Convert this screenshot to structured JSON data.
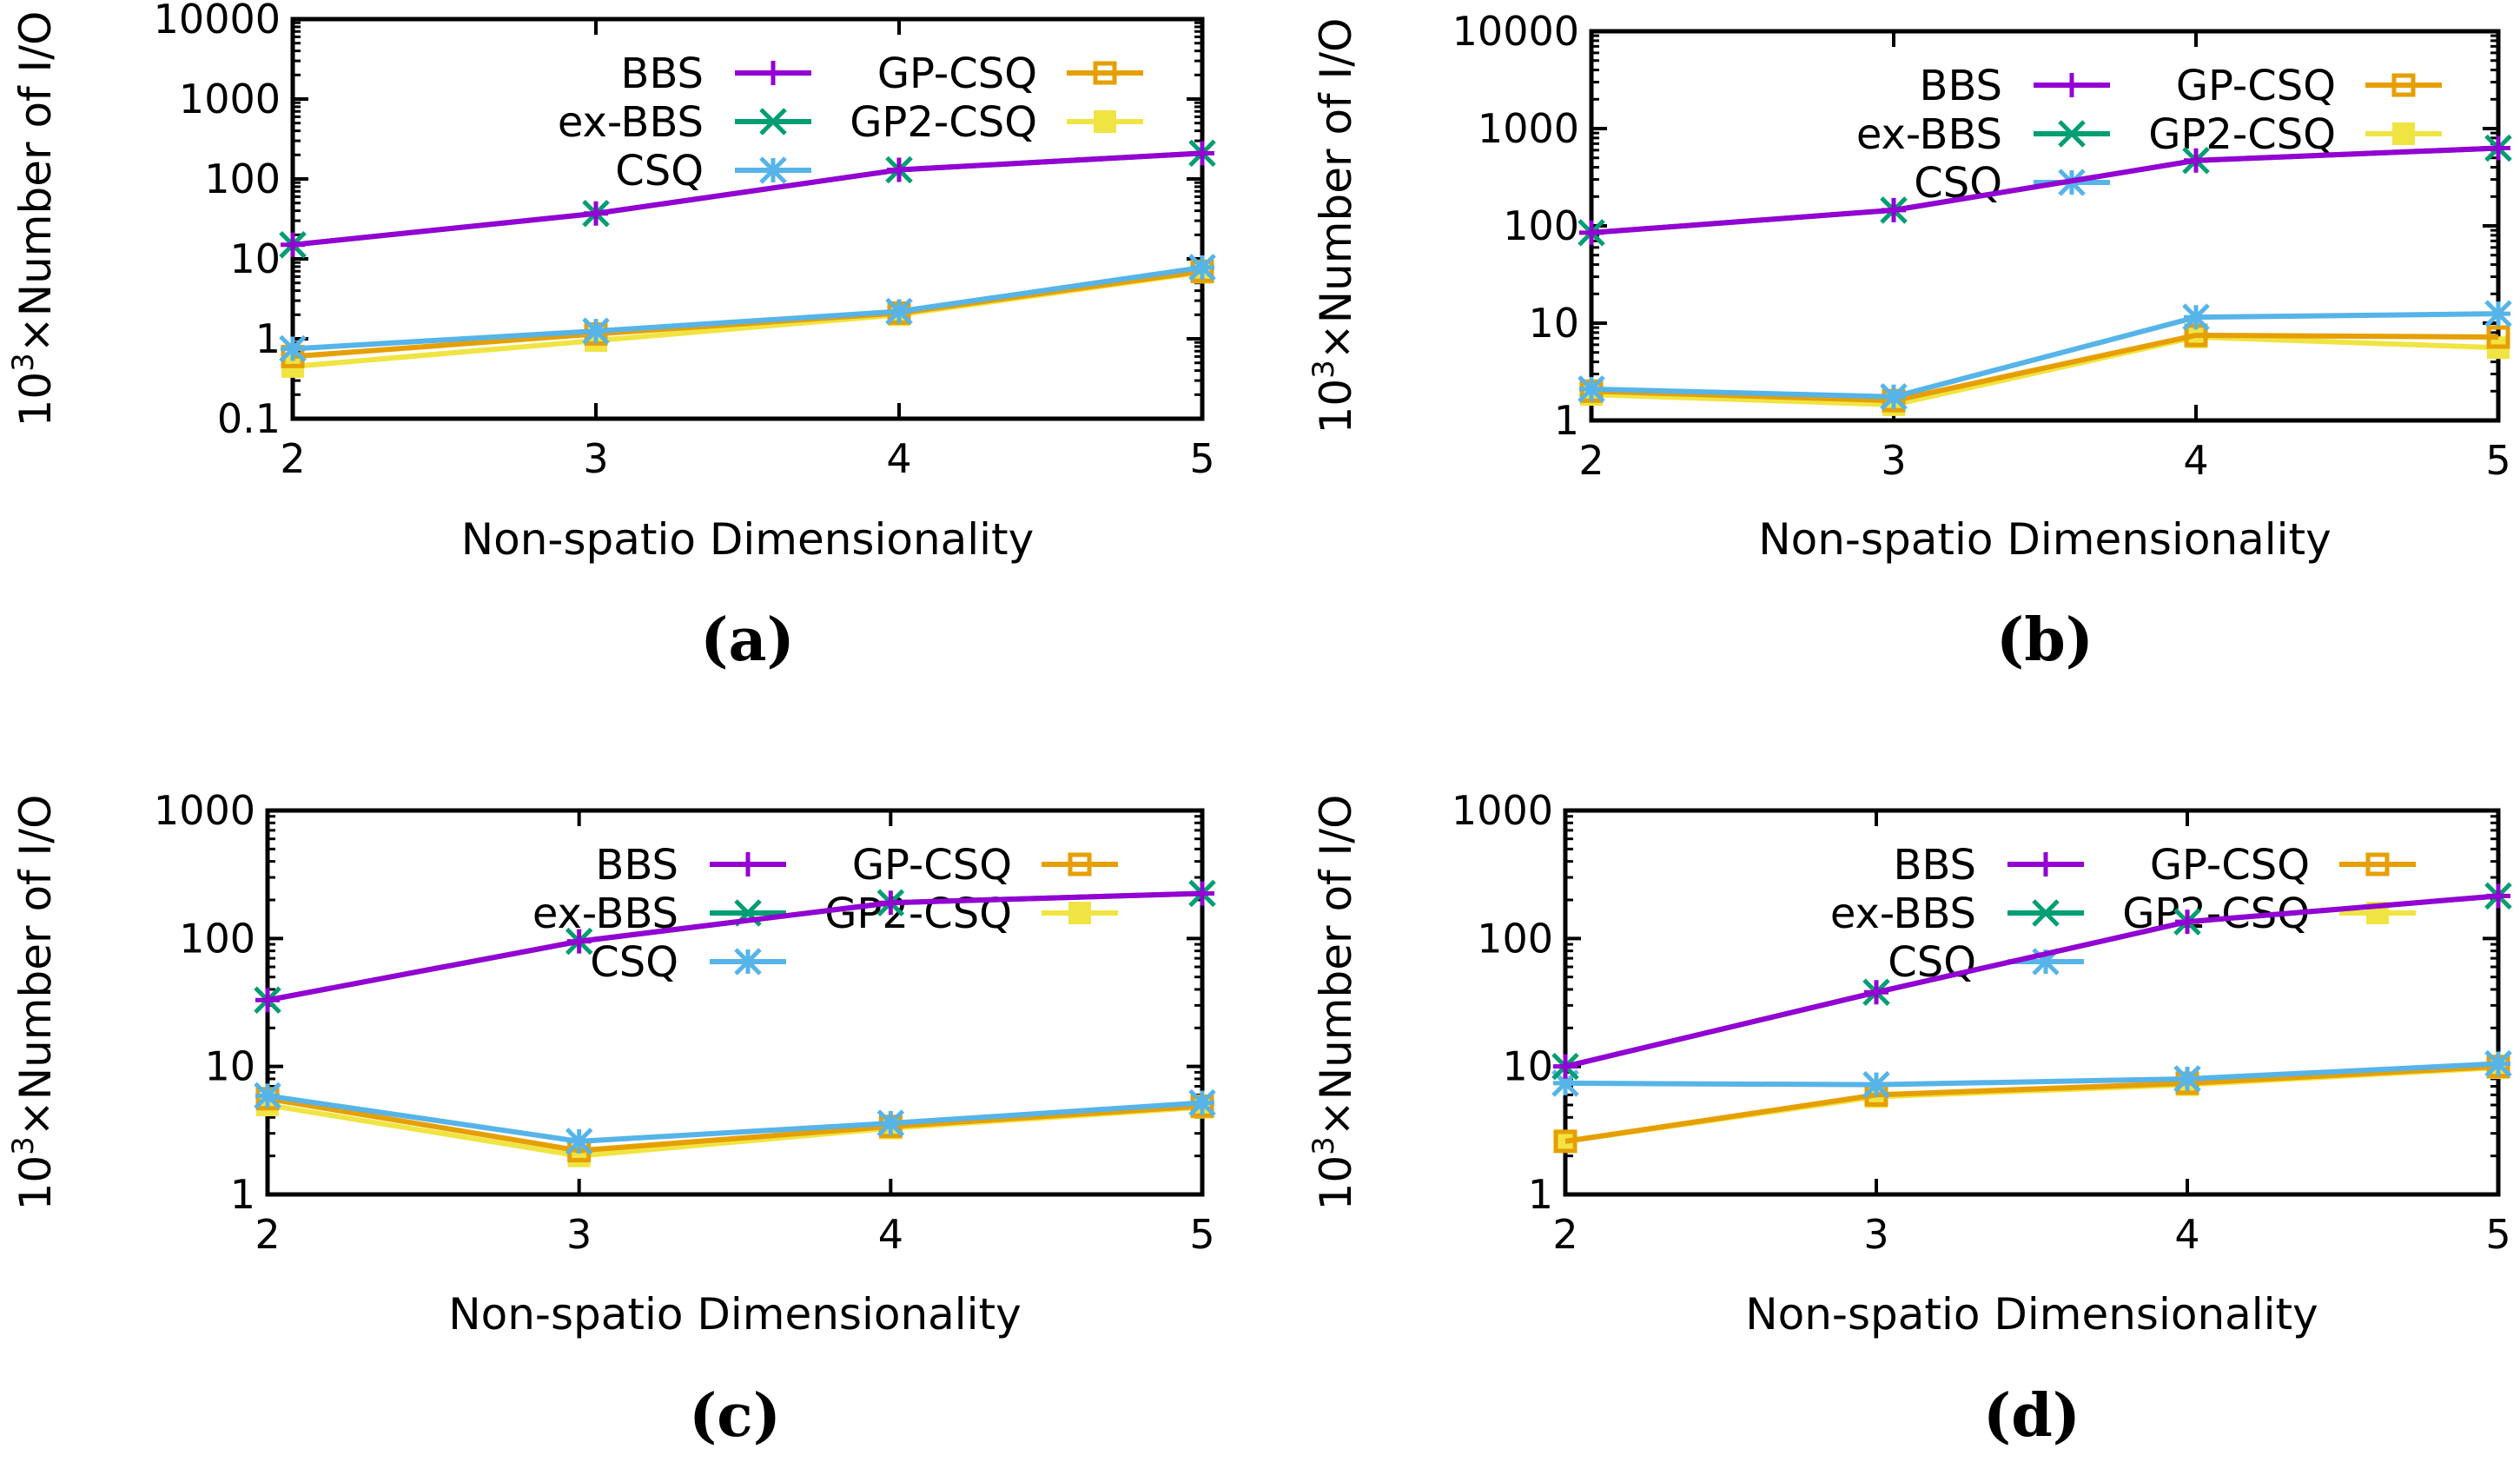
{
  "chart_data": [
    {
      "type": "line",
      "caption": "(a)",
      "xlabel": "Non-spatio Dimensionality",
      "ylabel_base": "10",
      "ylabel_exp": "3",
      "ylabel_rest": "×Number of I/O",
      "yscale": "log",
      "ylim": [
        0.1,
        10000
      ],
      "yticks": [
        "0.1",
        "1",
        "10",
        "100",
        "1000",
        "10000"
      ],
      "x": [
        2,
        3,
        4,
        5
      ],
      "xticks": [
        "2",
        "3",
        "4",
        "5"
      ],
      "legend_position": "top-left",
      "series": [
        {
          "name": "BBS",
          "color": "#9400d3",
          "marker": "plus",
          "values": [
            15,
            37,
            130,
            210
          ]
        },
        {
          "name": "ex-BBS",
          "color": "#009e73",
          "marker": "x",
          "values": [
            15,
            37,
            130,
            210
          ]
        },
        {
          "name": "CSQ",
          "color": "#56b4e9",
          "marker": "star",
          "values": [
            0.75,
            1.25,
            2.2,
            7.8
          ]
        },
        {
          "name": "GP-CSQ",
          "color": "#e69f00",
          "marker": "square",
          "values": [
            0.6,
            1.15,
            2.1,
            7.0
          ]
        },
        {
          "name": "GP2-CSQ",
          "color": "#f0e442",
          "marker": "filled-square",
          "values": [
            0.45,
            0.95,
            2.0,
            6.8
          ]
        }
      ]
    },
    {
      "type": "line",
      "caption": "(b)",
      "xlabel": "Non-spatio Dimensionality",
      "ylabel_base": "10",
      "ylabel_exp": "3",
      "ylabel_rest": "×Number of I/O",
      "yscale": "log",
      "ylim": [
        1,
        10000
      ],
      "yticks": [
        "1",
        "10",
        "100",
        "1000",
        "10000"
      ],
      "x": [
        2,
        3,
        4,
        5
      ],
      "xticks": [
        "2",
        "3",
        "4",
        "5"
      ],
      "legend_position": "top-left",
      "series": [
        {
          "name": "BBS",
          "color": "#9400d3",
          "marker": "plus",
          "values": [
            85,
            145,
            470,
            630
          ]
        },
        {
          "name": "ex-BBS",
          "color": "#009e73",
          "marker": "x",
          "values": [
            85,
            145,
            470,
            630
          ]
        },
        {
          "name": "CSQ",
          "color": "#56b4e9",
          "marker": "star",
          "values": [
            2.1,
            1.75,
            11.5,
            12.5
          ]
        },
        {
          "name": "GP-CSQ",
          "color": "#e69f00",
          "marker": "square",
          "values": [
            2.0,
            1.6,
            7.5,
            7.2
          ]
        },
        {
          "name": "GP2-CSQ",
          "color": "#f0e442",
          "marker": "filled-square",
          "values": [
            1.85,
            1.45,
            7.2,
            5.6
          ]
        }
      ]
    },
    {
      "type": "line",
      "caption": "(c)",
      "xlabel": "Non-spatio Dimensionality",
      "ylabel_base": "10",
      "ylabel_exp": "3",
      "ylabel_rest": "×Number of I/O",
      "yscale": "log",
      "ylim": [
        1,
        1000
      ],
      "yticks": [
        "1",
        "10",
        "100",
        "1000"
      ],
      "x": [
        2,
        3,
        4,
        5
      ],
      "xticks": [
        "2",
        "3",
        "4",
        "5"
      ],
      "legend_position": "top-left",
      "series": [
        {
          "name": "BBS",
          "color": "#9400d3",
          "marker": "plus",
          "values": [
            33,
            95,
            190,
            225
          ]
        },
        {
          "name": "ex-BBS",
          "color": "#009e73",
          "marker": "x",
          "values": [
            33,
            95,
            190,
            225
          ]
        },
        {
          "name": "CSQ",
          "color": "#56b4e9",
          "marker": "star",
          "values": [
            5.9,
            2.6,
            3.6,
            5.2
          ]
        },
        {
          "name": "GP-CSQ",
          "color": "#e69f00",
          "marker": "square",
          "values": [
            5.6,
            2.2,
            3.4,
            4.9
          ]
        },
        {
          "name": "GP2-CSQ",
          "color": "#f0e442",
          "marker": "filled-square",
          "values": [
            5.0,
            2.0,
            3.3,
            4.8
          ]
        }
      ]
    },
    {
      "type": "line",
      "caption": "(d)",
      "xlabel": "Non-spatio Dimensionality",
      "ylabel_base": "10",
      "ylabel_exp": "3",
      "ylabel_rest": "×Number of I/O",
      "yscale": "log",
      "ylim": [
        1,
        1000
      ],
      "yticks": [
        "1",
        "10",
        "100",
        "1000"
      ],
      "x": [
        2,
        3,
        4,
        5
      ],
      "xticks": [
        "2",
        "3",
        "4",
        "5"
      ],
      "legend_position": "top-left",
      "series": [
        {
          "name": "BBS",
          "color": "#9400d3",
          "marker": "plus",
          "values": [
            10,
            38,
            135,
            215
          ]
        },
        {
          "name": "ex-BBS",
          "color": "#009e73",
          "marker": "x",
          "values": [
            10,
            38,
            135,
            215
          ]
        },
        {
          "name": "CSQ",
          "color": "#56b4e9",
          "marker": "star",
          "values": [
            7.4,
            7.2,
            8.0,
            10.5
          ]
        },
        {
          "name": "GP-CSQ",
          "color": "#e69f00",
          "marker": "square",
          "values": [
            2.6,
            6.0,
            7.4,
            10.0
          ]
        },
        {
          "name": "GP2-CSQ",
          "color": "#f0e442",
          "marker": "filled-square",
          "values": [
            2.6,
            5.8,
            7.2,
            9.8
          ]
        }
      ]
    }
  ]
}
